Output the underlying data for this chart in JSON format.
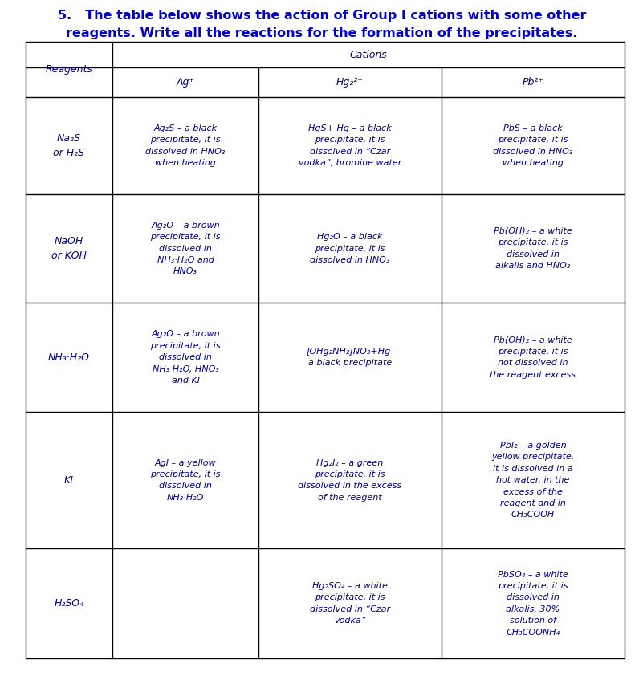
{
  "title_line1": "5.   The table below shows the action of Group I cations with some other",
  "title_line2": "reagents. Write all the reactions for the formation of the precipitates.",
  "title_color": "#0000cc",
  "title_black": "#000000",
  "header_cations": "Cations",
  "header_reagents": "Reagents",
  "col_headers": [
    "Ag⁺",
    "Hg₂²⁺",
    "Pb²⁺"
  ],
  "row_headers": [
    "Na₂S\nor H₂S",
    "NaOH\nor KOH",
    "NH₃·H₂O",
    "KI",
    "H₂SO₄"
  ],
  "cells": [
    [
      "Ag₂S – a black\nprecipitate, it is\ndissolved in HNO₃\nwhen heating",
      "HgS+ Hg – a black\nprecipitate, it is\ndissolved in “Czar\nvodka”, bromine water",
      "PbS – a black\nprecipitate, it is\ndissolved in HNO₃\nwhen heating"
    ],
    [
      "Ag₂O – a brown\nprecipitate, it is\ndissolved in\nNH₃·H₂O and\nHNO₃",
      "Hg₂O – a black\nprecipitate, it is\ndissolved in HNO₃",
      "Pb(OH)₂ – a white\nprecipitate, it is\ndissolved in\nalkalis and HNO₃"
    ],
    [
      "Ag₂O – a brown\nprecipitate, it is\ndissolved in\nNH₃·H₂O, HNO₃\nand KI",
      "[OHg₂NH₂]NO₃+Hg-\na black precipitate",
      "Pb(OH)₂ – a white\nprecipitate, it is\nnot dissolved in\nthe reagent excess"
    ],
    [
      "AgI – a yellow\nprecipitate, it is\ndissolved in\nNH₃·H₂O",
      "Hg₂I₂ – a green\nprecipitate, it is\ndissolved in the excess\nof the reagent",
      "PbI₂ – a golden\nyellow precipitate,\nit is dissolved in a\nhot water, in the\nexcess of the\nreagent and in\nCH₃COOH"
    ],
    [
      "",
      "Hg₂SO₄ – a white\nprecipitate, it is\ndissolved in “Czar\nvodka”",
      "PbSO₄ – a white\nprecipitate, it is\ndissolved in\nalkalis, 30%\nsolution of\nCH₃COONH₄"
    ]
  ],
  "text_color": "#000080",
  "bg_color": "#ffffff",
  "line_color": "#000000",
  "font_size": 8.0,
  "header_font_size": 9.0,
  "title_font_size": 11.5
}
